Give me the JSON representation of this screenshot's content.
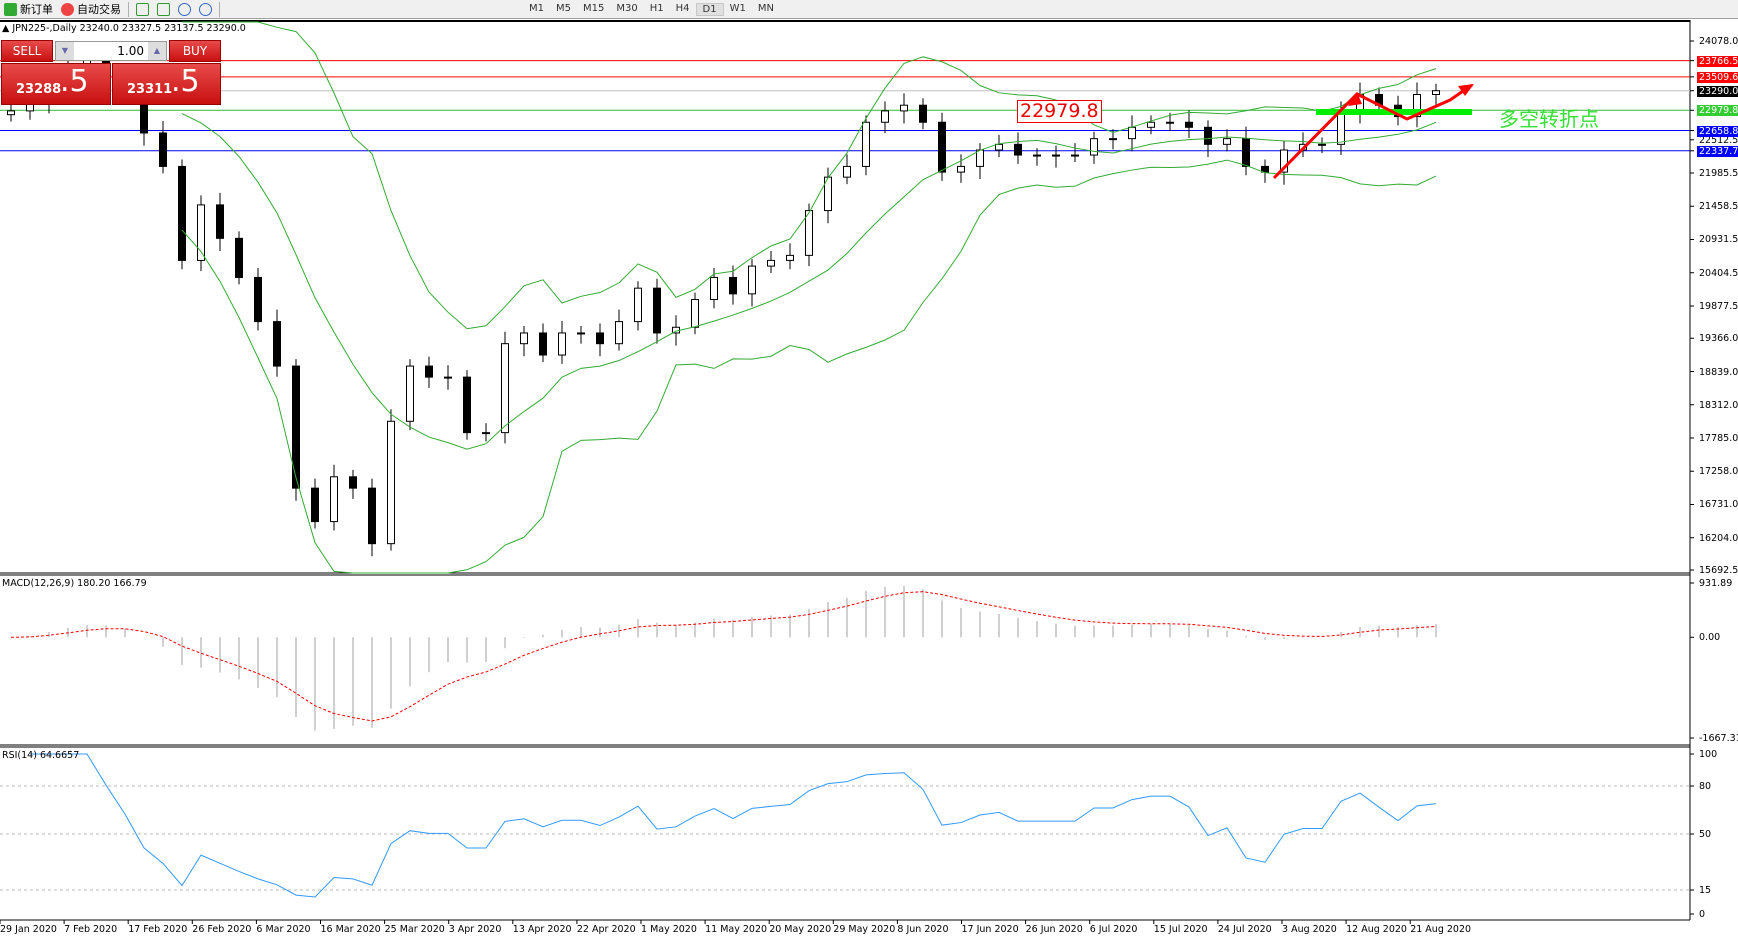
{
  "toolbar": {
    "new_order": "新订单",
    "auto_trading": "自动交易",
    "timeframes": [
      "M1",
      "M5",
      "M15",
      "M30",
      "H1",
      "H4",
      "D1",
      "W1",
      "MN"
    ],
    "active_timeframe": "D1"
  },
  "header": {
    "symbol": "JPN225-,Daily",
    "ohlc": "23240.0 23327.5 23137.5 23290.0"
  },
  "trade_panel": {
    "sell_label": "SELL",
    "buy_label": "BUY",
    "lot": "1.00",
    "sell_price_main": "23288",
    "sell_price_frac": ".5",
    "buy_price_main": "23311",
    "buy_price_frac": ".5"
  },
  "price_axis": [
    "24078.0",
    "21985.5",
    "21458.5",
    "20931.5",
    "20404.5",
    "19877.5",
    "19366.0",
    "18839.0",
    "18312.0",
    "17785.0",
    "17258.0",
    "16731.0",
    "16204.0",
    "15692.5",
    "22512.5"
  ],
  "levels": [
    {
      "value": "23766.5",
      "color": "#ff0000",
      "label_bg": "#ff0000"
    },
    {
      "value": "23509.6",
      "color": "#ff0000",
      "label_bg": "#ff0000"
    },
    {
      "value": "23290.0",
      "color": "#c0c0c0",
      "label_bg": "#000000"
    },
    {
      "value": "22979.8",
      "color": "#33bb33",
      "label_bg": "#33cc33"
    },
    {
      "value": "22658.8",
      "color": "#0000ff",
      "label_bg": "#0000ff"
    },
    {
      "value": "22337.7",
      "color": "#0000ff",
      "label_bg": "#0000ff"
    }
  ],
  "annotation": {
    "box_label": "22979.8",
    "text": "多空转折点",
    "arrow_color": "#ff0000",
    "bar_color": "#00ee00"
  },
  "macd": {
    "label": "MACD(12,26,9) 180.20 166.79",
    "axis": [
      "931.89",
      "0.00",
      "-1667.31"
    ]
  },
  "rsi": {
    "label": "RSI(14) 64.6657",
    "axis": [
      "100",
      "80",
      "50",
      "15",
      "0"
    ]
  },
  "dates": [
    "29 Jan 2020",
    "7 Feb 2020",
    "17 Feb 2020",
    "26 Feb 2020",
    "6 Mar 2020",
    "16 Mar 2020",
    "25 Mar 2020",
    "3 Apr 2020",
    "13 Apr 2020",
    "22 Apr 2020",
    "1 May 2020",
    "11 May 2020",
    "20 May 2020",
    "29 May 2020",
    "8 Jun 2020",
    "17 Jun 2020",
    "26 Jun 2020",
    "6 Jul 2020",
    "15 Jul 2020",
    "24 Jul 2020",
    "3 Aug 2020",
    "12 Aug 2020",
    "21 Aug 2020"
  ],
  "chart_data": {
    "type": "candlestick",
    "price_range": [
      15692.5,
      24078.0
    ],
    "closes": [
      22970,
      23100,
      23500,
      23700,
      23800,
      23600,
      23300,
      22620,
      22090,
      20600,
      21480,
      20950,
      20330,
      19630,
      18925,
      16990,
      16460,
      17170,
      16990,
      16110,
      18050,
      18925,
      18750,
      18750,
      17870,
      17870,
      19280,
      19450,
      19100,
      19450,
      19450,
      19280,
      19630,
      20160,
      19450,
      19540,
      19980,
      20330,
      20070,
      20510,
      20600,
      20680,
      21390,
      21920,
      22090,
      22790,
      22970,
      23060,
      22790,
      22000,
      22090,
      22350,
      22440,
      22270,
      22270,
      22270,
      22270,
      22530,
      22530,
      22710,
      22790,
      22790,
      22710,
      22440,
      22530,
      22090,
      22000,
      22350,
      22440,
      22440,
      22970,
      23230,
      23060,
      22880,
      23230,
      23290
    ],
    "bollinger_color": "#33aa33",
    "macd_signal_color": "#ff0000",
    "macd_hist_color": "#c0c0c0",
    "rsi_color": "#3399ff"
  }
}
